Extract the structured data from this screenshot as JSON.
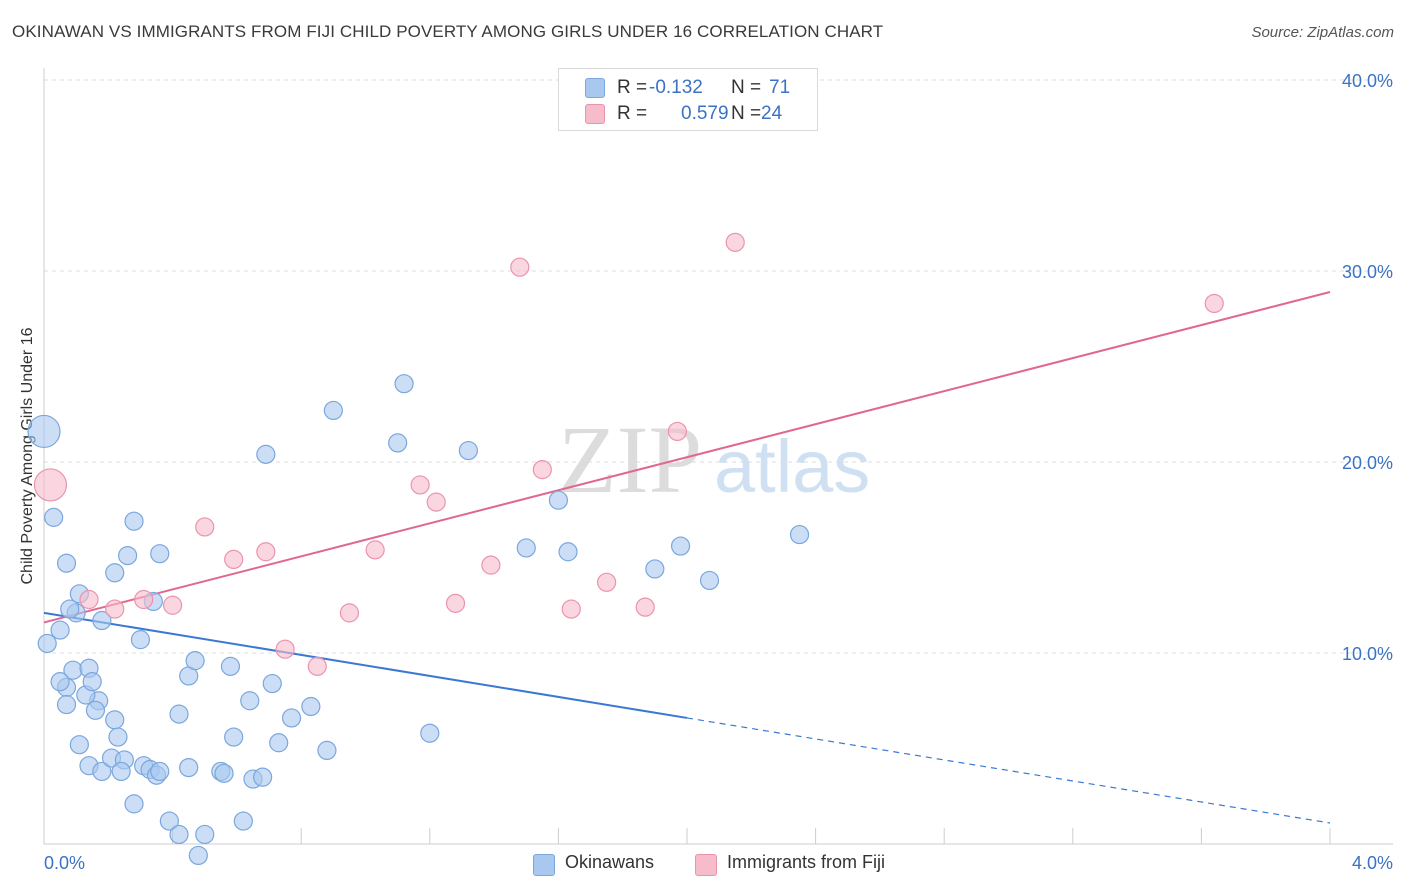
{
  "title": "OKINAWAN VS IMMIGRANTS FROM FIJI CHILD POVERTY AMONG GIRLS UNDER 16 CORRELATION CHART",
  "source": "Source: ZipAtlas.com",
  "watermark": {
    "zip": "ZIP",
    "atlas": "atlas"
  },
  "colors": {
    "blue_fill": "#a9c8f0",
    "blue_stroke": "#7aa7dd",
    "blue_line": "#3b78d4",
    "pink_fill": "#f7bccb",
    "pink_stroke": "#eb93ad",
    "pink_line": "#e0688f",
    "axis_text": "#3b72c4",
    "grid": "#dddddd"
  },
  "legend": {
    "rows": [
      {
        "r_label": "R = ",
        "r_value": "-0.132",
        "n_label": "N = ",
        "n_value": "71",
        "color": "#a9c8f0"
      },
      {
        "r_label": "R = ",
        "r_value": "0.579",
        "n_label": "N = ",
        "n_value": "24",
        "color": "#f7bccb"
      }
    ]
  },
  "bottom_legend": [
    {
      "label": "Okinawans",
      "color": "#a9c8f0"
    },
    {
      "label": "Immigrants from Fiji",
      "color": "#f7bccb"
    }
  ],
  "chart_data": {
    "type": "scatter",
    "title": "OKINAWAN VS IMMIGRANTS FROM FIJI CHILD POVERTY AMONG GIRLS UNDER 16 CORRELATION CHART",
    "xlabel": "",
    "ylabel": "Child Poverty Among Girls Under 16",
    "xlim": [
      0,
      4
    ],
    "ylim": [
      0,
      40
    ],
    "x_tick_labels": [
      "0.0%",
      "4.0%"
    ],
    "y_ticks": [
      10,
      20,
      30,
      40
    ],
    "y_tick_labels": [
      "10.0%",
      "20.0%",
      "30.0%",
      "40.0%"
    ],
    "grid": true,
    "legend_position": "top-center",
    "series": [
      {
        "name": "Okinawans",
        "color": "#a9c8f0",
        "points": [
          [
            0.0,
            21.6,
            16
          ],
          [
            0.03,
            17.1,
            9
          ],
          [
            0.1,
            12.1,
            9
          ],
          [
            0.18,
            11.7,
            9
          ],
          [
            0.08,
            12.3,
            9
          ],
          [
            0.05,
            11.2,
            9
          ],
          [
            0.28,
            16.9,
            9
          ],
          [
            0.36,
            15.2,
            9
          ],
          [
            0.22,
            14.2,
            9
          ],
          [
            0.07,
            14.7,
            9
          ],
          [
            0.11,
            13.1,
            9
          ],
          [
            0.01,
            10.5,
            9
          ],
          [
            0.09,
            9.1,
            9
          ],
          [
            0.07,
            8.2,
            9
          ],
          [
            0.17,
            7.5,
            9
          ],
          [
            0.14,
            9.2,
            9
          ],
          [
            0.05,
            8.5,
            9
          ],
          [
            0.13,
            7.8,
            9
          ],
          [
            0.15,
            8.5,
            9
          ],
          [
            0.07,
            7.3,
            9
          ],
          [
            0.16,
            7.0,
            9
          ],
          [
            0.22,
            6.5,
            9
          ],
          [
            0.11,
            5.2,
            9
          ],
          [
            0.23,
            5.6,
            9
          ],
          [
            0.14,
            4.1,
            9
          ],
          [
            0.18,
            3.8,
            9
          ],
          [
            0.21,
            4.5,
            9
          ],
          [
            0.25,
            4.4,
            9
          ],
          [
            0.24,
            3.8,
            9
          ],
          [
            0.28,
            2.1,
            9
          ],
          [
            0.31,
            4.1,
            9
          ],
          [
            0.33,
            3.9,
            9
          ],
          [
            0.35,
            3.6,
            9
          ],
          [
            0.36,
            3.8,
            9
          ],
          [
            0.39,
            1.2,
            9
          ],
          [
            0.42,
            0.5,
            9
          ],
          [
            0.45,
            4.0,
            9
          ],
          [
            0.48,
            -0.6,
            9
          ],
          [
            0.5,
            0.5,
            9
          ],
          [
            0.55,
            3.8,
            9
          ],
          [
            0.56,
            3.7,
            9
          ],
          [
            0.59,
            5.6,
            9
          ],
          [
            0.62,
            1.2,
            9
          ],
          [
            0.65,
            3.4,
            9
          ],
          [
            0.68,
            3.5,
            9
          ],
          [
            0.69,
            20.4,
            9
          ],
          [
            0.71,
            8.4,
            9
          ],
          [
            0.73,
            5.3,
            9
          ],
          [
            0.77,
            6.6,
            9
          ],
          [
            0.83,
            7.2,
            9
          ],
          [
            0.88,
            4.9,
            9
          ],
          [
            0.9,
            22.7,
            9
          ],
          [
            1.12,
            24.1,
            9
          ],
          [
            1.1,
            21.0,
            9
          ],
          [
            1.32,
            20.6,
            9
          ],
          [
            1.5,
            15.5,
            9
          ],
          [
            1.6,
            18.0,
            9
          ],
          [
            1.63,
            15.3,
            9
          ],
          [
            1.9,
            14.4,
            9
          ],
          [
            1.98,
            15.6,
            9
          ],
          [
            2.07,
            13.8,
            9
          ],
          [
            2.35,
            16.2,
            9
          ],
          [
            0.26,
            15.1,
            9
          ],
          [
            0.3,
            10.7,
            9
          ],
          [
            0.34,
            12.7,
            9
          ],
          [
            0.45,
            8.8,
            9
          ],
          [
            0.58,
            9.3,
            9
          ],
          [
            0.47,
            9.6,
            9
          ],
          [
            0.42,
            6.8,
            9
          ],
          [
            0.64,
            7.5,
            9
          ],
          [
            1.2,
            5.8,
            9
          ]
        ]
      },
      {
        "name": "Immigrants from Fiji",
        "color": "#f7bccb",
        "points": [
          [
            0.02,
            18.8,
            16
          ],
          [
            0.14,
            12.8,
            9
          ],
          [
            0.22,
            12.3,
            9
          ],
          [
            0.31,
            12.8,
            9
          ],
          [
            0.4,
            12.5,
            9
          ],
          [
            0.5,
            16.6,
            9
          ],
          [
            0.59,
            14.9,
            9
          ],
          [
            0.69,
            15.3,
            9
          ],
          [
            0.75,
            10.2,
            9
          ],
          [
            0.85,
            9.3,
            9
          ],
          [
            0.95,
            12.1,
            9
          ],
          [
            1.03,
            15.4,
            9
          ],
          [
            1.17,
            18.8,
            9
          ],
          [
            1.22,
            17.9,
            9
          ],
          [
            1.28,
            12.6,
            9
          ],
          [
            1.39,
            14.6,
            9
          ],
          [
            1.48,
            30.2,
            9
          ],
          [
            1.55,
            19.6,
            9
          ],
          [
            1.64,
            12.3,
            9
          ],
          [
            1.75,
            13.7,
            9
          ],
          [
            1.87,
            12.4,
            9
          ],
          [
            1.97,
            21.6,
            9
          ],
          [
            2.15,
            31.5,
            9
          ],
          [
            3.64,
            28.3,
            9
          ]
        ]
      }
    ],
    "trend_lines": [
      {
        "series": "Okinawans",
        "x": [
          0.0,
          2.0
        ],
        "y": [
          12.1,
          6.6
        ],
        "extended_to": [
          4.0,
          1.1
        ]
      },
      {
        "series": "Immigrants from Fiji",
        "x": [
          0.0,
          4.0
        ],
        "y": [
          11.6,
          28.9
        ]
      }
    ]
  }
}
